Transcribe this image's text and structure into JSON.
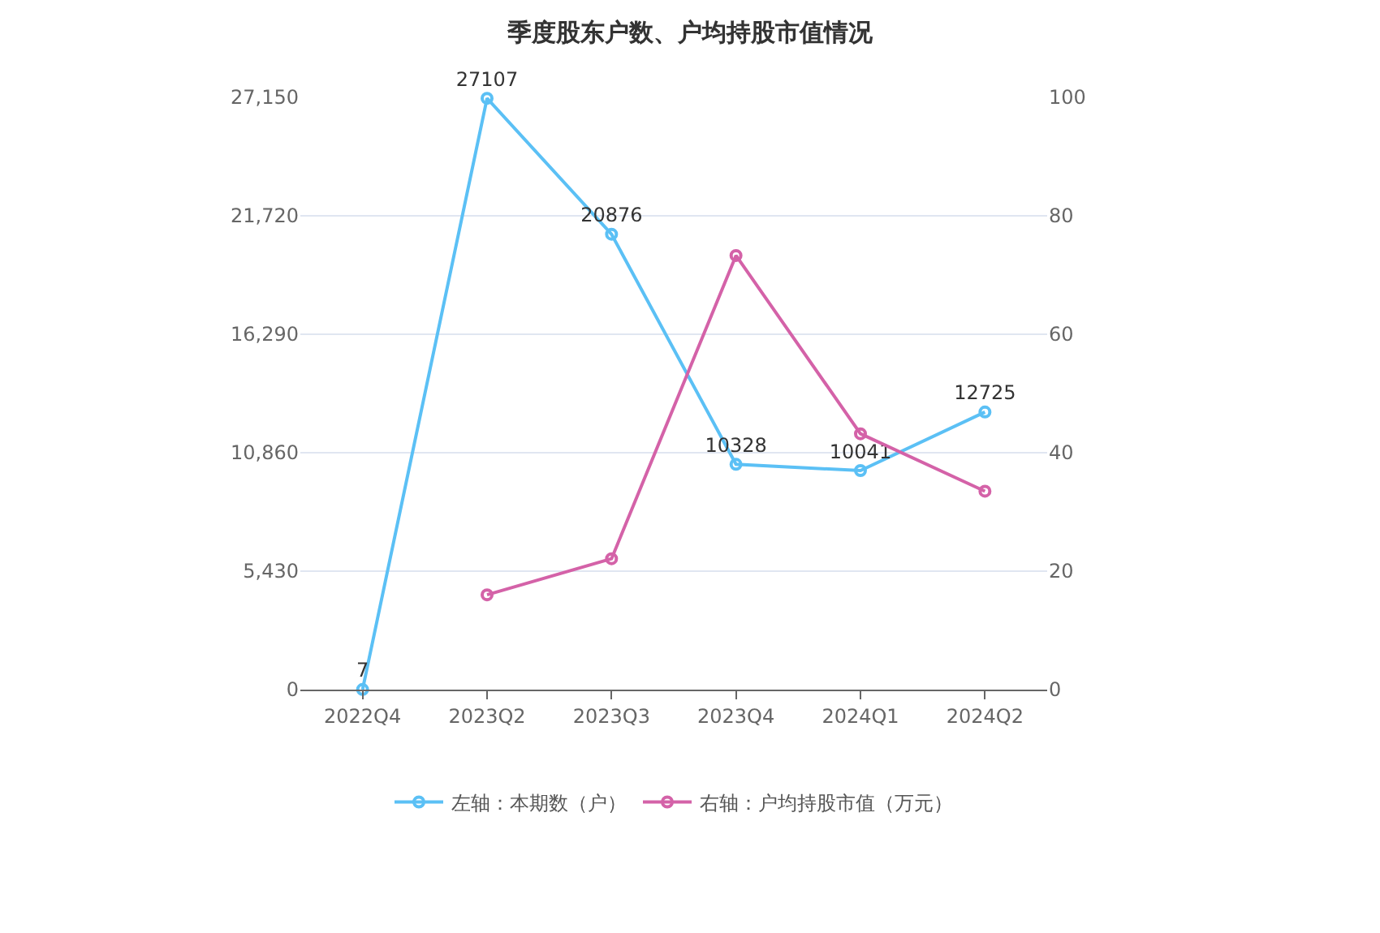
{
  "chart_data": {
    "type": "line",
    "title": "季度股东户数、户均持股市值情况",
    "categories": [
      "2022Q4",
      "2023Q2",
      "2023Q3",
      "2023Q4",
      "2024Q1",
      "2024Q2"
    ],
    "series": [
      {
        "name": "左轴：本期数（户）",
        "color": "#5bc0f5",
        "values": [
          7,
          27107,
          20876,
          10328,
          10041,
          12725
        ],
        "value_labels": [
          "7",
          "27107",
          "20876",
          "10328",
          "10041",
          "12725"
        ]
      },
      {
        "name": "右轴：户均持股市值（万元）",
        "color": "#d462a8",
        "axis": "y2",
        "values": [
          null,
          16.0,
          22.1,
          73.3,
          43.2,
          33.5
        ]
      }
    ],
    "ylim": [
      0,
      27150
    ],
    "yticks": [
      0,
      {
        "value": 5430,
        "label": "5,430"
      },
      {
        "value": 10860,
        "label": "10,860"
      },
      {
        "value": 16290,
        "label": "16,290"
      },
      {
        "value": 21720,
        "label": "21,720"
      },
      {
        "value": 27150,
        "label": "27,150"
      }
    ],
    "y2lim": [
      0,
      100
    ],
    "y2ticks": [
      0,
      20,
      40,
      60,
      80,
      100
    ],
    "grid": "y",
    "legend": "bottom",
    "marker": "circle",
    "line_style": "solid"
  }
}
